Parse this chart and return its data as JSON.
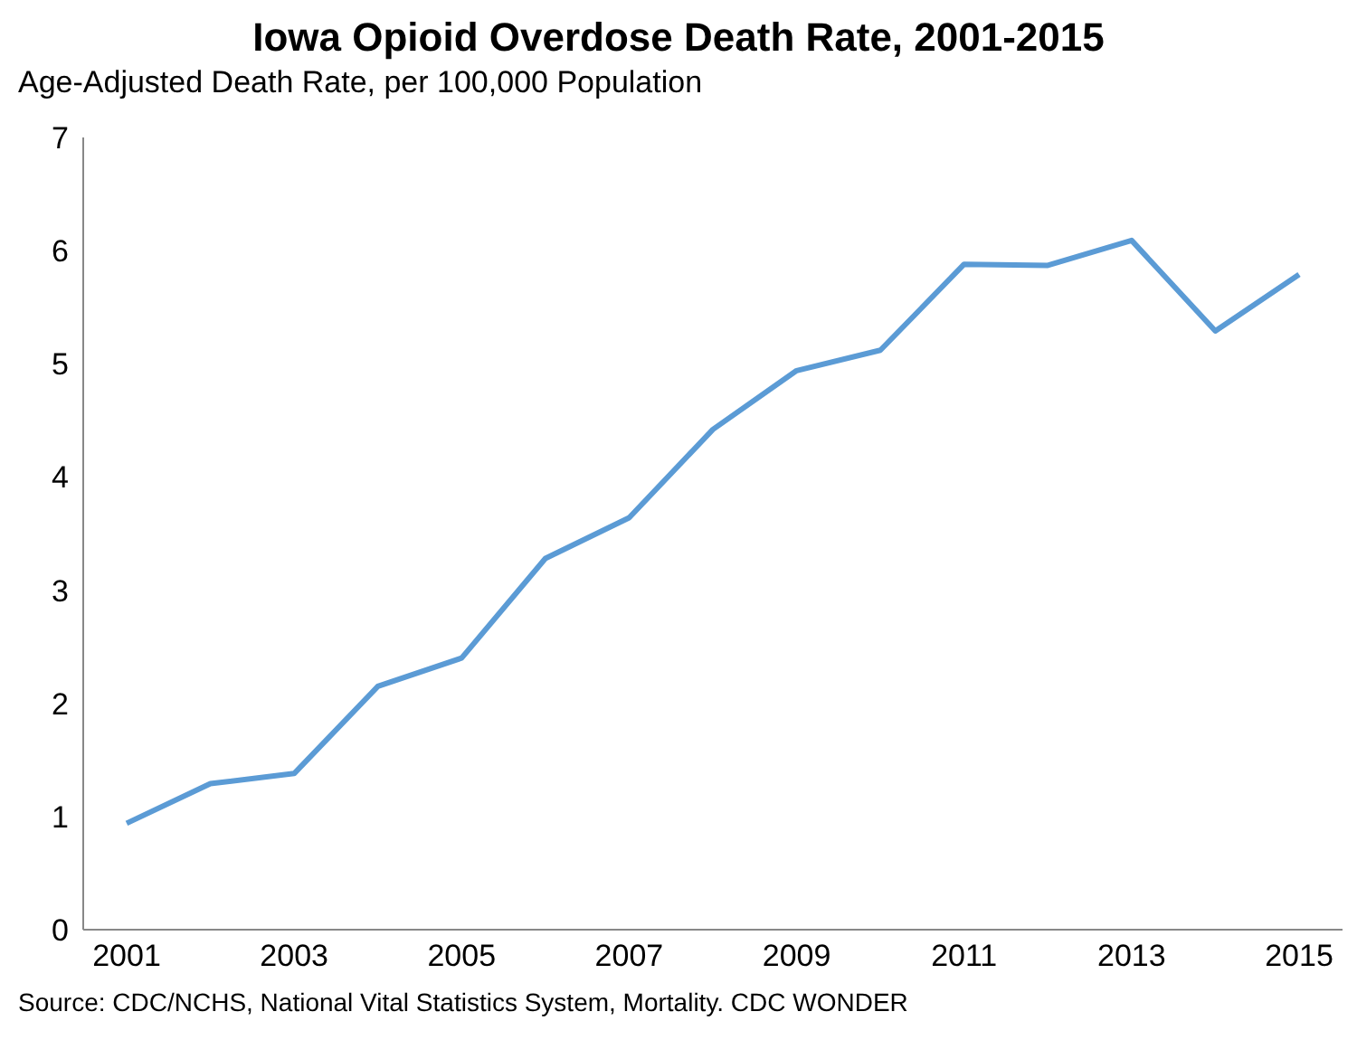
{
  "chart_data": {
    "type": "line",
    "title": "Iowa Opioid Overdose Death Rate, 2001-2015",
    "ylabel": "Age-Adjusted Death Rate, per 100,000 Population",
    "categories": [
      "2001",
      null,
      "2003",
      null,
      "2005",
      null,
      "2007",
      null,
      "2009",
      null,
      "2011",
      null,
      "2013",
      null,
      "2015"
    ],
    "series": [
      {
        "color": "#5b9bd5",
        "values": [
          0.94,
          1.29,
          1.38,
          2.15,
          2.4,
          3.28,
          3.64,
          4.42,
          4.94,
          5.12,
          5.88,
          5.87,
          6.09,
          5.29,
          5.79
        ]
      }
    ],
    "ylim": [
      0,
      7
    ],
    "yticks": [
      0,
      1,
      2,
      3,
      4,
      5,
      6,
      7
    ],
    "marker": "none",
    "line_style": "solid",
    "annotations": [
      "Source:  CDC/NCHS, National Vital Statistics System, Mortality. CDC WONDER"
    ]
  }
}
